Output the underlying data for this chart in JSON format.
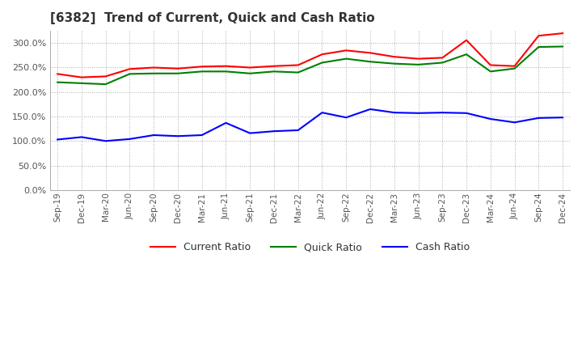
{
  "title": "[6382]  Trend of Current, Quick and Cash Ratio",
  "x_labels": [
    "Sep-19",
    "Dec-19",
    "Mar-20",
    "Jun-20",
    "Sep-20",
    "Dec-20",
    "Mar-21",
    "Jun-21",
    "Sep-21",
    "Dec-21",
    "Mar-22",
    "Jun-22",
    "Sep-22",
    "Dec-22",
    "Mar-23",
    "Jun-23",
    "Sep-23",
    "Dec-23",
    "Mar-24",
    "Jun-24",
    "Sep-24",
    "Dec-24"
  ],
  "current_ratio": [
    237,
    230,
    232,
    247,
    250,
    248,
    252,
    253,
    250,
    253,
    255,
    277,
    285,
    280,
    272,
    268,
    270,
    306,
    255,
    253,
    315,
    320
  ],
  "quick_ratio": [
    220,
    218,
    216,
    237,
    238,
    238,
    242,
    242,
    238,
    242,
    240,
    260,
    268,
    262,
    258,
    256,
    260,
    277,
    242,
    248,
    292,
    293
  ],
  "cash_ratio": [
    103,
    108,
    100,
    104,
    112,
    110,
    112,
    137,
    116,
    120,
    122,
    158,
    148,
    165,
    158,
    157,
    158,
    157,
    145,
    138,
    147,
    148
  ],
  "ylim": [
    0,
    325
  ],
  "yticks": [
    0,
    50,
    100,
    150,
    200,
    250,
    300
  ],
  "colors": {
    "current": "#ff0000",
    "quick": "#008000",
    "cash": "#0000ff"
  },
  "legend_labels": [
    "Current Ratio",
    "Quick Ratio",
    "Cash Ratio"
  ],
  "grid_color": "#aaaaaa",
  "bg_color": "#ffffff",
  "plot_bg_color": "#ffffff"
}
